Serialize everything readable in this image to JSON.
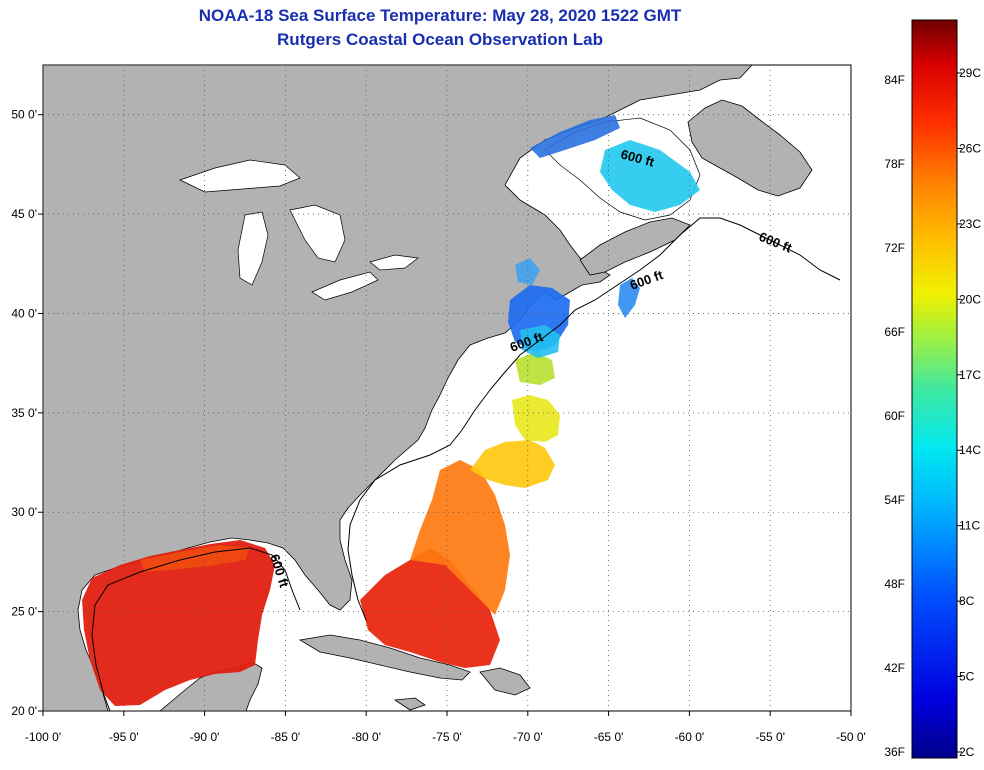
{
  "header": {
    "title_line1": "NOAA-18 Sea Surface Temperature:  May 28, 2020 1522 GMT",
    "title_line2": "Rutgers Coastal Ocean Observation Lab"
  },
  "map": {
    "lon_range": [
      -100,
      -50
    ],
    "lat_range": [
      20,
      52.5
    ],
    "lon_ticks": [
      {
        "value": -100,
        "label": "-100 0'"
      },
      {
        "value": -95,
        "label": "-95 0'"
      },
      {
        "value": -90,
        "label": "-90 0'"
      },
      {
        "value": -85,
        "label": "-85 0'"
      },
      {
        "value": -80,
        "label": "-80 0'"
      },
      {
        "value": -75,
        "label": "-75 0'"
      },
      {
        "value": -70,
        "label": "-70 0'"
      },
      {
        "value": -65,
        "label": "-65 0'"
      },
      {
        "value": -60,
        "label": "-60 0'"
      },
      {
        "value": -55,
        "label": "-55 0'"
      },
      {
        "value": -50,
        "label": "-50 0'"
      }
    ],
    "lat_ticks": [
      {
        "value": 20,
        "label": "20 0'"
      },
      {
        "value": 25,
        "label": "25 0'"
      },
      {
        "value": 30,
        "label": "30 0'"
      },
      {
        "value": 35,
        "label": "35 0'"
      },
      {
        "value": 40,
        "label": "40 0'"
      },
      {
        "value": 45,
        "label": "45 0'"
      },
      {
        "value": 50,
        "label": "50 0'"
      }
    ],
    "isobath_labels": [
      "600 ft",
      "600 ft",
      "600 ft",
      "600 ft",
      "600 ft"
    ],
    "colors": {
      "land": "#b2b2b2",
      "ocean": "#ffffff",
      "grid": "#555555"
    }
  },
  "colorbar": {
    "fahrenheit_labels": [
      "84F",
      "78F",
      "72F",
      "66F",
      "60F",
      "54F",
      "48F",
      "42F",
      "36F"
    ],
    "celsius_labels": [
      "29C",
      "26C",
      "23C",
      "20C",
      "17C",
      "14C",
      "11C",
      "8C",
      "5C",
      "2C"
    ],
    "min_c": 2,
    "max_c": 31
  }
}
